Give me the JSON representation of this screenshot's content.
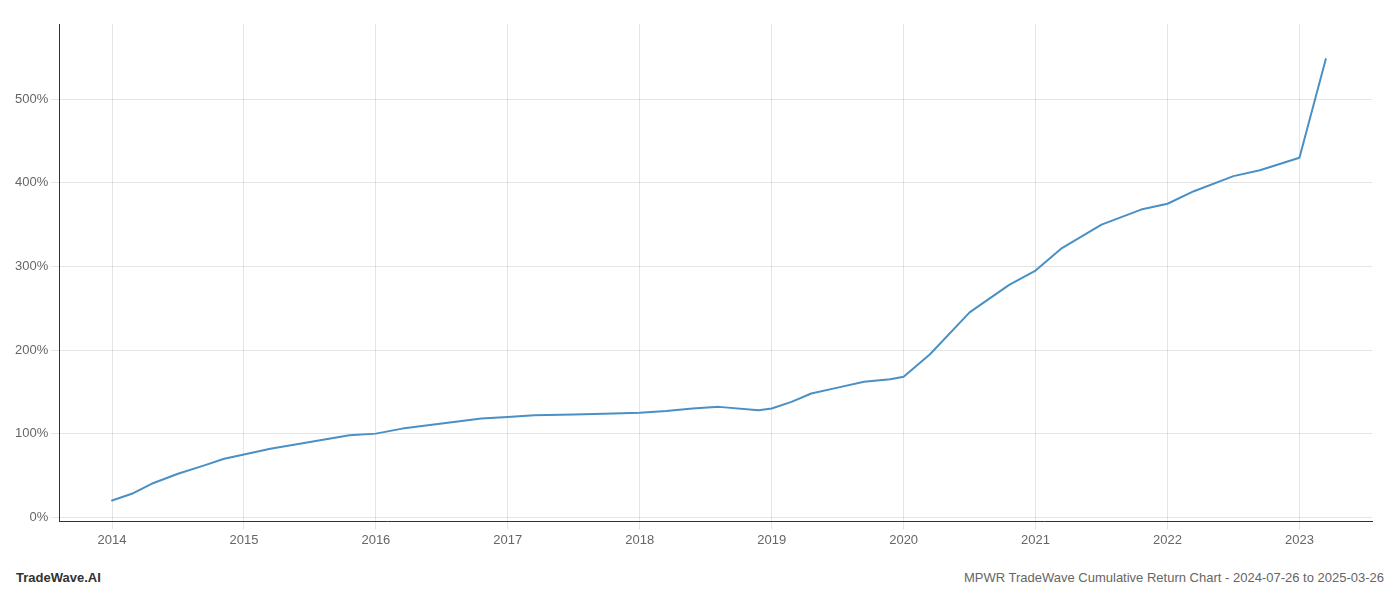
{
  "chart_data": {
    "type": "line",
    "annotations": [
      "TradeWave.AI",
      "MPWR TradeWave Cumulative Return Chart - 2024-07-26 to 2025-03-26"
    ],
    "x": [
      2014.0,
      2014.15,
      2014.3,
      2014.5,
      2014.7,
      2014.85,
      2015.0,
      2015.2,
      2015.5,
      2015.8,
      2016.0,
      2016.2,
      2016.5,
      2016.8,
      2017.0,
      2017.2,
      2017.5,
      2017.8,
      2018.0,
      2018.2,
      2018.4,
      2018.6,
      2018.9,
      2019.0,
      2019.15,
      2019.3,
      2019.5,
      2019.7,
      2019.9,
      2020.0,
      2020.2,
      2020.5,
      2020.8,
      2021.0,
      2021.2,
      2021.5,
      2021.8,
      2022.0,
      2022.2,
      2022.5,
      2022.7,
      2023.0,
      2023.2
    ],
    "values": [
      20,
      28,
      40,
      52,
      62,
      70,
      75,
      82,
      90,
      98,
      100,
      106,
      112,
      118,
      120,
      122,
      123,
      124,
      125,
      127,
      130,
      132,
      128,
      130,
      138,
      148,
      155,
      162,
      165,
      168,
      195,
      245,
      278,
      295,
      322,
      350,
      368,
      375,
      390,
      408,
      415,
      430,
      548
    ],
    "color": "#4a90c4",
    "xlim": [
      2013.6,
      2023.55
    ],
    "xticks": [
      2014,
      2015,
      2016,
      2017,
      2018,
      2019,
      2020,
      2021,
      2022,
      2023
    ],
    "ylim": [
      -5,
      590
    ],
    "yticks": [
      {
        "value": 0,
        "label": "0%"
      },
      {
        "value": 100,
        "label": "100%"
      },
      {
        "value": 200,
        "label": "200%"
      },
      {
        "value": 300,
        "label": "300%"
      },
      {
        "value": 400,
        "label": "400%"
      },
      {
        "value": 500,
        "label": "500%"
      }
    ],
    "grid": true
  }
}
